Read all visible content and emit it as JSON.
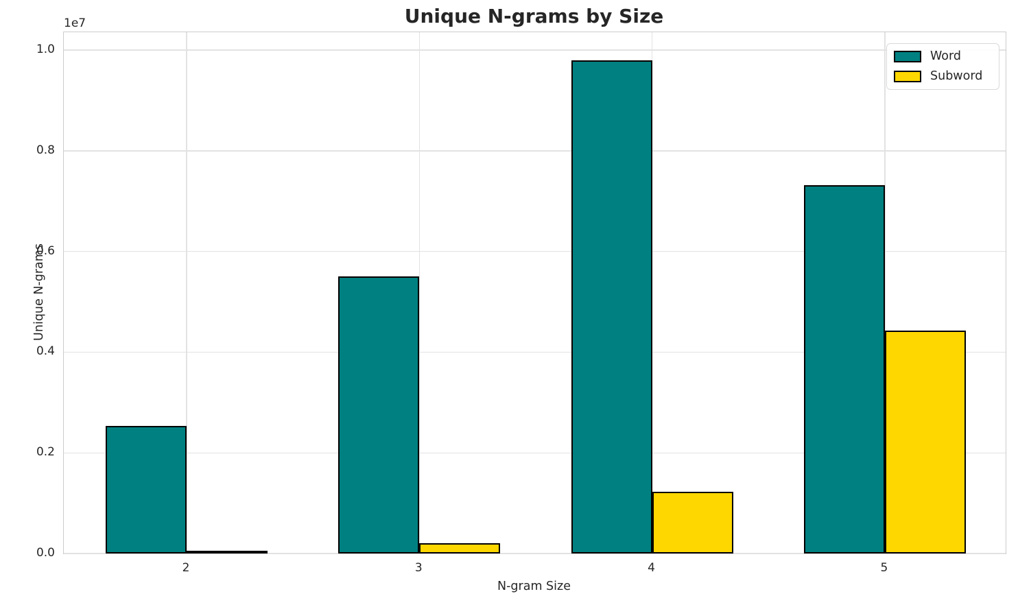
{
  "chart_data": {
    "type": "bar",
    "title": "Unique N-grams by Size",
    "xlabel": "N-gram Size",
    "ylabel": "Unique N-grams",
    "offset_text": "1e7",
    "categories": [
      "2",
      "3",
      "4",
      "5"
    ],
    "series": [
      {
        "name": "Word",
        "color": "#008080",
        "values": [
          2530000,
          5500000,
          9800000,
          7320000
        ]
      },
      {
        "name": "Subword",
        "color": "#FFD700",
        "values": [
          50000,
          200000,
          1230000,
          4430000
        ]
      }
    ],
    "y_ticks": [
      {
        "value": 0,
        "label": "0.0"
      },
      {
        "value": 2000000,
        "label": "0.2"
      },
      {
        "value": 4000000,
        "label": "0.4"
      },
      {
        "value": 6000000,
        "label": "0.6"
      },
      {
        "value": 8000000,
        "label": "0.8"
      },
      {
        "value": 10000000,
        "label": "1.0"
      }
    ],
    "ylim": [
      0,
      10354000
    ],
    "grid": true,
    "legend_position": "upper right",
    "bar_edge_color": "#000000",
    "background_color": "#ffffff",
    "grid_color": "#e2e2e2",
    "text_color": "#262626"
  }
}
